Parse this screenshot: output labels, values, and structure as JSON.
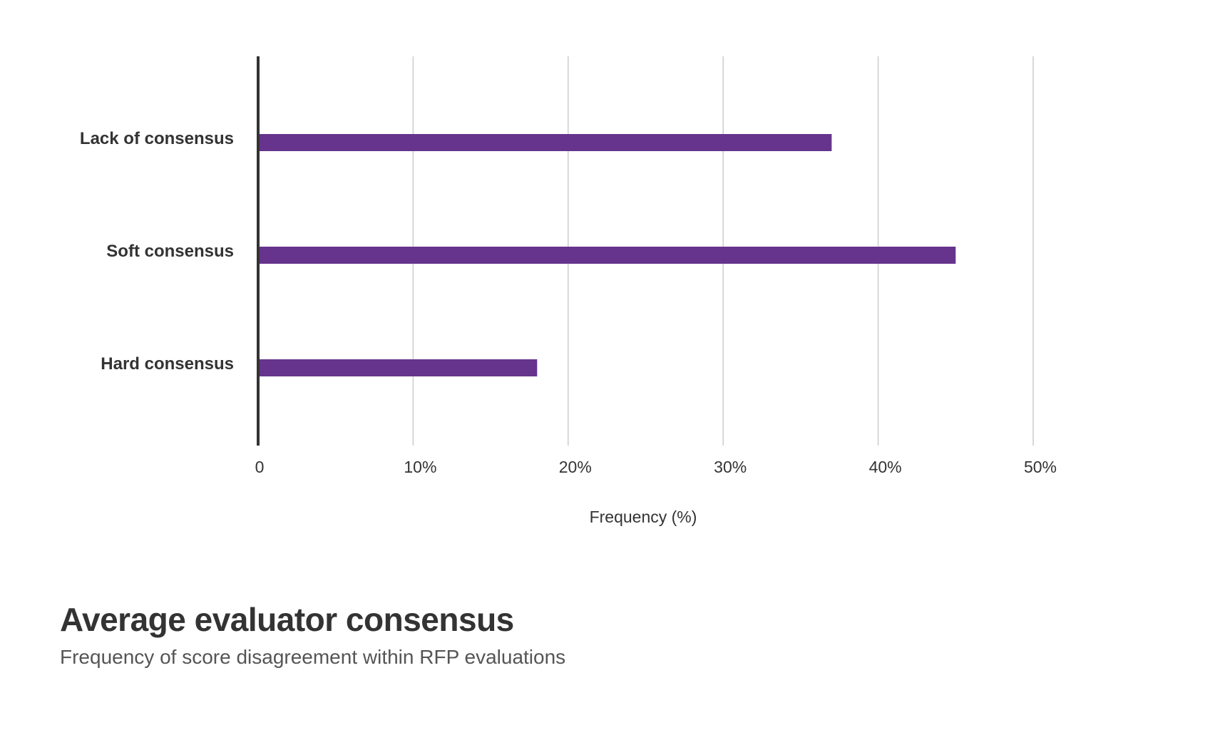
{
  "chart_data": {
    "type": "bar",
    "orientation": "horizontal",
    "title": "Average evaluator consensus",
    "subtitle": "Frequency of score disagreement within RFP evaluations",
    "xlabel": "Frequency (%)",
    "ylabel": "",
    "categories": [
      "Lack of consensus",
      "Soft consensus",
      "Hard consensus"
    ],
    "values": [
      37,
      45,
      18
    ],
    "xlim": [
      0,
      50
    ],
    "xticks": [
      0,
      10,
      20,
      30,
      40,
      50
    ],
    "xtick_labels": [
      "0",
      "10%",
      "20%",
      "30%",
      "40%",
      "50%"
    ],
    "grid": "vertical",
    "colors": {
      "bar": "#66348c",
      "axis": "#333333",
      "grid": "#cccccc"
    }
  }
}
